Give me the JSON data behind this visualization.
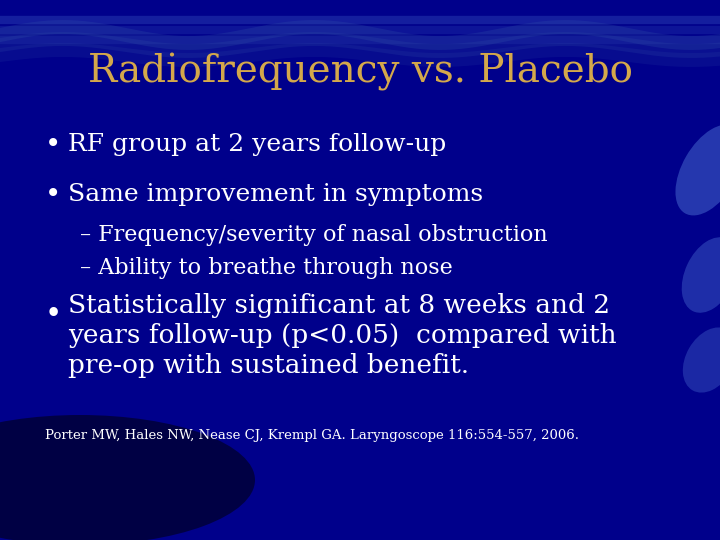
{
  "title": "Radiofrequency vs. Placebo",
  "title_color": "#D4A84B",
  "title_fontsize": 28,
  "title_font": "serif",
  "background_color": "#00008B",
  "bullet_color": "#FFFFFF",
  "bullet_fontsize": 18,
  "sub_bullet_fontsize": 16,
  "big_bullet_fontsize": 19,
  "citation_fontsize": 9.5,
  "bullets": [
    "RF group at 2 years follow-up",
    "Same improvement in symptoms"
  ],
  "sub_bullets": [
    "Frequency/severity of nasal obstruction",
    "Ability to breathe through nose"
  ],
  "big_bullet_line1": "Statistically significant at 8 weeks and 2",
  "big_bullet_line2": "years follow-up (p<0.05)  compared with",
  "big_bullet_line3": "pre-op with sustained benefit.",
  "citation": "Porter MW, Hales NW, Nease CJ, Krempl GA. Laryngoscope 116:554-557, 2006."
}
